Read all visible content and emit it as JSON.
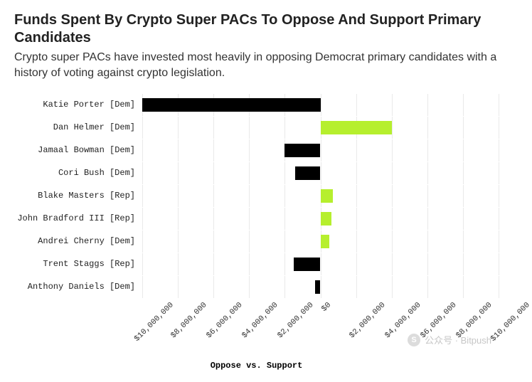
{
  "title": "Funds Spent By Crypto Super PACs To Oppose And Support Primary Candidates",
  "subtitle": "Crypto super PACs have invested most heavily in opposing Democrat primary candidates with a history of voting against crypto legislation.",
  "chart": {
    "type": "bar",
    "orientation": "horizontal-diverging",
    "x_title": "Oppose vs. Support",
    "x_min": -10000000,
    "x_max": 10000000,
    "x_ticks": [
      -10000000,
      -8000000,
      -6000000,
      -4000000,
      -2000000,
      0,
      2000000,
      4000000,
      6000000,
      8000000,
      10000000
    ],
    "x_tick_labels": [
      "$10,000,000",
      "$8,000,000",
      "$6,000,000",
      "$4,000,000",
      "$2,000,000",
      "$0",
      "$2,000,000",
      "$4,000,000",
      "$6,000,000",
      "$8,000,000",
      "$10,000,000"
    ],
    "grid_color": "#e9e9e9",
    "background_color": "#ffffff",
    "label_font": "monospace",
    "label_fontsize": 12,
    "tick_fontsize": 11,
    "tick_rotation_deg": -45,
    "colors": {
      "oppose": "#000000",
      "support": "#b6ef2e"
    },
    "rows": [
      {
        "label": "Katie Porter [Dem]",
        "value": -10000000,
        "kind": "oppose"
      },
      {
        "label": "Dan Helmer [Dem]",
        "value": 4000000,
        "kind": "support"
      },
      {
        "label": "Jamaal Bowman [Dem]",
        "value": -2000000,
        "kind": "oppose"
      },
      {
        "label": "Cori Bush [Dem]",
        "value": -1400000,
        "kind": "oppose"
      },
      {
        "label": "Blake Masters [Rep]",
        "value": 700000,
        "kind": "support"
      },
      {
        "label": "John Bradford III [Rep]",
        "value": 600000,
        "kind": "support"
      },
      {
        "label": "Andrei Cherny [Dem]",
        "value": 500000,
        "kind": "support"
      },
      {
        "label": "Trent Staggs [Rep]",
        "value": -1500000,
        "kind": "oppose"
      },
      {
        "label": "Anthony Daniels [Dem]",
        "value": -300000,
        "kind": "oppose"
      }
    ]
  },
  "watermark": {
    "icon": "S",
    "text": "公众号 · Bitpush"
  }
}
